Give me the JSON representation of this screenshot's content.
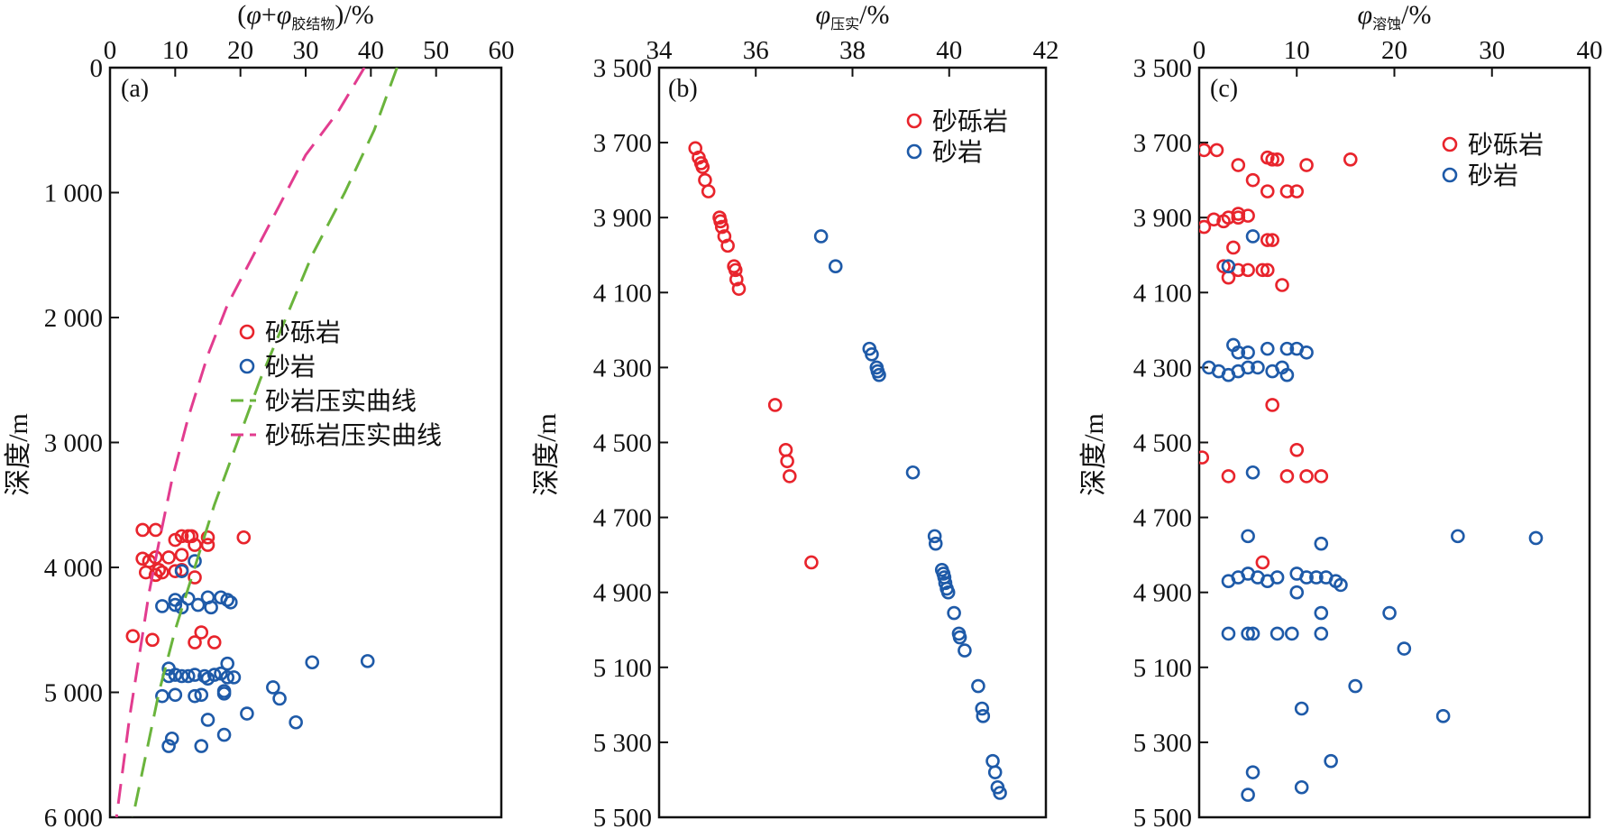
{
  "colors": {
    "red": "#e8242c",
    "blue": "#1e5aa8",
    "green": "#6ab43c",
    "magenta": "#e23c8f",
    "axis": "#111111"
  },
  "chart_data": [
    {
      "type": "scatter",
      "panel_label": "(a)",
      "xlabel_parts": [
        "(",
        "φ",
        "+",
        "φ",
        "胶结物",
        ")/%"
      ],
      "ylabel": "深度/m",
      "xlim": [
        0,
        60
      ],
      "ylim": [
        0,
        6000
      ],
      "y_inverted": true,
      "x_axis_position": "top",
      "xticks": [
        0,
        10,
        20,
        30,
        40,
        50,
        60
      ],
      "yticks": [
        0,
        1000,
        2000,
        3000,
        4000,
        5000,
        6000
      ],
      "ytick_labels": [
        "0",
        "1 000",
        "2 000",
        "3 000",
        "4 000",
        "5 000",
        "6 000"
      ],
      "legend_position": "center-right",
      "series": [
        {
          "name": "砂砾岩",
          "kind": "scatter",
          "color": "#e8242c",
          "points": [
            [
              5,
              3700
            ],
            [
              7,
              3700
            ],
            [
              11,
              3750
            ],
            [
              12,
              3750
            ],
            [
              12.5,
              3750
            ],
            [
              15,
              3760
            ],
            [
              20.5,
              3760
            ],
            [
              10,
              3780
            ],
            [
              13,
              3820
            ],
            [
              15,
              3820
            ],
            [
              7,
              3920
            ],
            [
              9,
              3920
            ],
            [
              11,
              3900
            ],
            [
              5,
              3930
            ],
            [
              6,
              3950
            ],
            [
              7.5,
              4020
            ],
            [
              10,
              4030
            ],
            [
              11,
              4020
            ],
            [
              5.5,
              4040
            ],
            [
              8,
              4040
            ],
            [
              7,
              4060
            ],
            [
              13,
              4080
            ],
            [
              3.5,
              4550
            ],
            [
              6.5,
              4580
            ],
            [
              13,
              4600
            ],
            [
              16,
              4600
            ],
            [
              14,
              4520
            ]
          ]
        },
        {
          "name": "砂岩",
          "kind": "scatter",
          "color": "#1e5aa8",
          "points": [
            [
              13,
              3950
            ],
            [
              11,
              4030
            ],
            [
              10,
              4260
            ],
            [
              12,
              4250
            ],
            [
              15,
              4240
            ],
            [
              17,
              4240
            ],
            [
              18,
              4260
            ],
            [
              18.5,
              4280
            ],
            [
              8,
              4310
            ],
            [
              10,
              4300
            ],
            [
              11,
              4320
            ],
            [
              13.5,
              4300
            ],
            [
              15.5,
              4320
            ],
            [
              9,
              4810
            ],
            [
              18,
              4770
            ],
            [
              31,
              4760
            ],
            [
              39.5,
              4750
            ],
            [
              9,
              4870
            ],
            [
              10,
              4860
            ],
            [
              11,
              4870
            ],
            [
              12,
              4870
            ],
            [
              13,
              4860
            ],
            [
              14.5,
              4870
            ],
            [
              16,
              4860
            ],
            [
              17,
              4850
            ],
            [
              19,
              4880
            ],
            [
              18,
              4880
            ],
            [
              15,
              4890
            ],
            [
              8,
              5030
            ],
            [
              10,
              5020
            ],
            [
              13,
              5030
            ],
            [
              14,
              5020
            ],
            [
              17.5,
              4990
            ],
            [
              17.5,
              5010
            ],
            [
              25,
              4960
            ],
            [
              26,
              5050
            ],
            [
              21,
              5170
            ],
            [
              15,
              5220
            ],
            [
              28.5,
              5240
            ],
            [
              17.5,
              5340
            ],
            [
              9.5,
              5370
            ],
            [
              9,
              5430
            ],
            [
              14,
              5430
            ]
          ]
        },
        {
          "name": "砂岩压实曲线",
          "kind": "line",
          "dash": true,
          "color": "#6ab43c",
          "points": [
            [
              44,
              0
            ],
            [
              40.5,
              500
            ],
            [
              36,
              1000
            ],
            [
              31,
              1500
            ],
            [
              27,
              2000
            ],
            [
              23,
              2500
            ],
            [
              19.5,
              3000
            ],
            [
              16,
              3500
            ],
            [
              13,
              4000
            ],
            [
              10,
              4500
            ],
            [
              7.5,
              5000
            ],
            [
              5.5,
              5500
            ],
            [
              3.5,
              6000
            ]
          ]
        },
        {
          "name": "砂砾岩压实曲线",
          "kind": "line",
          "dash": true,
          "color": "#e23c8f",
          "points": [
            [
              39,
              0
            ],
            [
              35,
              350
            ],
            [
              30,
              700
            ],
            [
              26,
              1100
            ],
            [
              22,
              1500
            ],
            [
              18,
              1900
            ],
            [
              15,
              2300
            ],
            [
              12,
              2800
            ],
            [
              9.5,
              3300
            ],
            [
              7.5,
              3800
            ],
            [
              6,
              4200
            ],
            [
              4.5,
              4700
            ],
            [
              3,
              5200
            ],
            [
              2,
              5600
            ],
            [
              1,
              6000
            ]
          ]
        }
      ]
    },
    {
      "type": "scatter",
      "panel_label": "(b)",
      "xlabel_parts": [
        "φ",
        "压实",
        "/%"
      ],
      "ylabel": "深度/m",
      "xlim": [
        34,
        42
      ],
      "ylim": [
        3500,
        5500
      ],
      "y_inverted": true,
      "x_axis_position": "top",
      "xticks": [
        34,
        36,
        38,
        40,
        42
      ],
      "yticks": [
        3500,
        3700,
        3900,
        4100,
        4300,
        4500,
        4700,
        4900,
        5100,
        5300,
        5500
      ],
      "ytick_labels": [
        "3 500",
        "3 700",
        "3 900",
        "4 100",
        "4 300",
        "4 500",
        "4 700",
        "4 900",
        "5 100",
        "5 300",
        "5 500"
      ],
      "legend_position": "top-right",
      "series": [
        {
          "name": "砂砾岩",
          "kind": "scatter",
          "color": "#e8242c",
          "points": [
            [
              34.75,
              3715
            ],
            [
              34.82,
              3740
            ],
            [
              34.87,
              3755
            ],
            [
              34.9,
              3765
            ],
            [
              34.95,
              3800
            ],
            [
              35.02,
              3830
            ],
            [
              35.25,
              3900
            ],
            [
              35.27,
              3910
            ],
            [
              35.3,
              3925
            ],
            [
              35.35,
              3950
            ],
            [
              35.42,
              3975
            ],
            [
              35.55,
              4030
            ],
            [
              35.58,
              4040
            ],
            [
              35.6,
              4065
            ],
            [
              35.65,
              4090
            ],
            [
              36.4,
              4400
            ],
            [
              36.62,
              4520
            ],
            [
              36.65,
              4550
            ],
            [
              36.7,
              4590
            ],
            [
              37.15,
              4820
            ]
          ]
        },
        {
          "name": "砂岩",
          "kind": "scatter",
          "color": "#1e5aa8",
          "points": [
            [
              37.35,
              3950
            ],
            [
              37.65,
              4030
            ],
            [
              38.35,
              4250
            ],
            [
              38.4,
              4265
            ],
            [
              38.5,
              4300
            ],
            [
              38.52,
              4310
            ],
            [
              38.55,
              4320
            ],
            [
              39.25,
              4580
            ],
            [
              39.7,
              4750
            ],
            [
              39.72,
              4770
            ],
            [
              39.85,
              4840
            ],
            [
              39.88,
              4850
            ],
            [
              39.9,
              4860
            ],
            [
              39.92,
              4875
            ],
            [
              39.95,
              4890
            ],
            [
              39.98,
              4900
            ],
            [
              40.1,
              4955
            ],
            [
              40.2,
              5010
            ],
            [
              40.22,
              5020
            ],
            [
              40.32,
              5055
            ],
            [
              40.6,
              5150
            ],
            [
              40.68,
              5210
            ],
            [
              40.7,
              5230
            ],
            [
              40.9,
              5350
            ],
            [
              40.95,
              5380
            ],
            [
              41.0,
              5420
            ],
            [
              41.05,
              5435
            ]
          ]
        }
      ]
    },
    {
      "type": "scatter",
      "panel_label": "(c)",
      "xlabel_parts": [
        "φ",
        "溶蚀",
        "/%"
      ],
      "ylabel": "深度/m",
      "xlim": [
        0,
        40
      ],
      "ylim": [
        3500,
        5500
      ],
      "y_inverted": true,
      "x_axis_position": "top",
      "xticks": [
        0,
        10,
        20,
        30,
        40
      ],
      "yticks": [
        3500,
        3700,
        3900,
        4100,
        4300,
        4500,
        4700,
        4900,
        5100,
        5300,
        5500
      ],
      "ytick_labels": [
        "3 500",
        "3 700",
        "3 900",
        "4 100",
        "4 300",
        "4 500",
        "4 700",
        "4 900",
        "5 100",
        "5 300",
        "5 500"
      ],
      "legend_position": "top-right",
      "series": [
        {
          "name": "砂砾岩",
          "kind": "scatter",
          "color": "#e8242c",
          "points": [
            [
              0.5,
              3720
            ],
            [
              1.8,
              3720
            ],
            [
              7,
              3740
            ],
            [
              7.5,
              3745
            ],
            [
              8,
              3745
            ],
            [
              15.5,
              3745
            ],
            [
              3,
              3900
            ],
            [
              4,
              3890
            ],
            [
              5,
              3895
            ],
            [
              2.5,
              3910
            ],
            [
              1.5,
              3905
            ],
            [
              0.5,
              3925
            ],
            [
              7,
              3960
            ],
            [
              2.5,
              4030
            ],
            [
              3,
              4060
            ],
            [
              4,
              4040
            ],
            [
              5,
              4040
            ],
            [
              6.5,
              4040
            ],
            [
              7,
              4040
            ],
            [
              8.5,
              4080
            ],
            [
              3.5,
              3980
            ],
            [
              4,
              3900
            ],
            [
              7.5,
              3960
            ],
            [
              11,
              3760
            ],
            [
              4,
              3760
            ],
            [
              5.5,
              3800
            ],
            [
              7,
              3830
            ],
            [
              9,
              3830
            ],
            [
              10,
              3830
            ],
            [
              7.5,
              4400
            ],
            [
              0.3,
              4540
            ],
            [
              3,
              4590
            ],
            [
              9,
              4590
            ],
            [
              11,
              4590
            ],
            [
              12.5,
              4590
            ],
            [
              10,
              4520
            ],
            [
              6.5,
              4820
            ]
          ]
        },
        {
          "name": "砂岩",
          "kind": "scatter",
          "color": "#1e5aa8",
          "points": [
            [
              5.5,
              3950
            ],
            [
              3,
              4030
            ],
            [
              3.5,
              4240
            ],
            [
              4,
              4260
            ],
            [
              5,
              4260
            ],
            [
              7,
              4250
            ],
            [
              9,
              4250
            ],
            [
              10,
              4250
            ],
            [
              11,
              4260
            ],
            [
              1,
              4300
            ],
            [
              2,
              4310
            ],
            [
              3,
              4320
            ],
            [
              4,
              4310
            ],
            [
              5,
              4300
            ],
            [
              6,
              4300
            ],
            [
              7.5,
              4310
            ],
            [
              8.5,
              4300
            ],
            [
              9,
              4320
            ],
            [
              5.5,
              4580
            ],
            [
              5,
              4750
            ],
            [
              26.5,
              4750
            ],
            [
              34.5,
              4755
            ],
            [
              12.5,
              4770
            ],
            [
              3,
              4870
            ],
            [
              4,
              4860
            ],
            [
              5,
              4850
            ],
            [
              6,
              4860
            ],
            [
              7,
              4870
            ],
            [
              8,
              4860
            ],
            [
              10,
              4850
            ],
            [
              11,
              4860
            ],
            [
              12,
              4860
            ],
            [
              13,
              4860
            ],
            [
              14,
              4870
            ],
            [
              14.5,
              4880
            ],
            [
              10,
              4900
            ],
            [
              3,
              5010
            ],
            [
              5,
              5010
            ],
            [
              5.5,
              5010
            ],
            [
              8,
              5010
            ],
            [
              9.5,
              5010
            ],
            [
              12.5,
              5010
            ],
            [
              12.5,
              4955
            ],
            [
              19.5,
              4955
            ],
            [
              21,
              5050
            ],
            [
              16,
              5150
            ],
            [
              10.5,
              5210
            ],
            [
              25,
              5230
            ],
            [
              13.5,
              5350
            ],
            [
              5.5,
              5380
            ],
            [
              5,
              5440
            ],
            [
              10.5,
              5420
            ]
          ]
        }
      ]
    }
  ]
}
